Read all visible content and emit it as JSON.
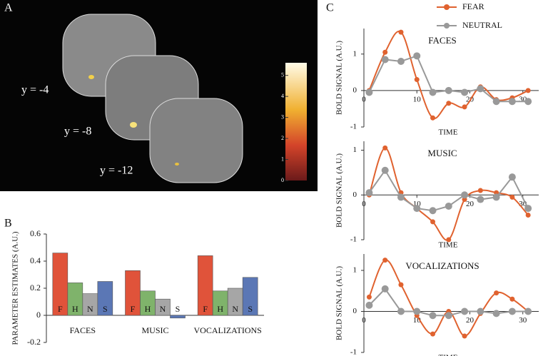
{
  "panel_labels": [
    "A",
    "B",
    "C"
  ],
  "panel_a": {
    "slice_labels": [
      "y = -4",
      "y = -8",
      "y = -12"
    ],
    "colorbar_ticks": [
      0,
      1,
      2,
      3,
      4,
      5
    ],
    "colorbar_lim": [
      0,
      5.6
    ]
  },
  "chart_data": [
    {
      "type": "bar",
      "y_label": "PARAMETER ESTIMATES (A.U.)",
      "categories": [
        "FACES",
        "MUSIC",
        "VOCALIZATIONS"
      ],
      "series": [
        {
          "name": "F",
          "color": "#e0533a",
          "values": [
            0.46,
            0.33,
            0.44
          ]
        },
        {
          "name": "H",
          "color": "#7fb36b",
          "values": [
            0.24,
            0.18,
            0.18
          ]
        },
        {
          "name": "N",
          "color": "#a6a6a6",
          "values": [
            0.16,
            0.12,
            0.2
          ]
        },
        {
          "name": "S",
          "color": "#5b77b5",
          "values": [
            0.25,
            -0.02,
            0.28
          ]
        }
      ],
      "ylim": [
        -0.2,
        0.6
      ],
      "yticks": [
        -0.2,
        0,
        0.2,
        0.4,
        0.6
      ]
    },
    {
      "type": "line",
      "title": "FACES",
      "x_label": "TIME",
      "y_label": "BOLD SIGNAL (A.U.)",
      "x": [
        1,
        4,
        7,
        10,
        13,
        16,
        19,
        22,
        25,
        28,
        31
      ],
      "series": [
        {
          "name": "FEAR",
          "color": "#e0622f",
          "smooth": true,
          "values": [
            0,
            1.05,
            1.6,
            0.3,
            -0.75,
            -0.35,
            -0.45,
            0.1,
            -0.25,
            -0.2,
            0
          ]
        },
        {
          "name": "NEUTRAL",
          "color": "#999999",
          "smooth": false,
          "values": [
            -0.05,
            0.85,
            0.8,
            0.95,
            -0.05,
            0,
            -0.05,
            0.05,
            -0.3,
            -0.3,
            -0.3
          ]
        }
      ],
      "xlim": [
        0,
        33
      ],
      "xticks": [
        0,
        10,
        20,
        30
      ],
      "ylim": [
        -1,
        1.7
      ],
      "yticks": [
        -1,
        0,
        1
      ]
    },
    {
      "type": "line",
      "title": "MUSIC",
      "x_label": "TIME",
      "y_label": "BOLD SIGNAL (A.U.)",
      "x": [
        1,
        4,
        7,
        10,
        13,
        16,
        19,
        22,
        25,
        28,
        31
      ],
      "series": [
        {
          "color": "#e0622f",
          "smooth": true,
          "values": [
            0,
            1.05,
            0.05,
            -0.3,
            -0.6,
            -1.0,
            -0.1,
            0.1,
            0.05,
            -0.05,
            -0.45
          ]
        },
        {
          "color": "#999999",
          "smooth": false,
          "values": [
            0.05,
            0.55,
            -0.05,
            -0.3,
            -0.35,
            -0.25,
            0,
            -0.1,
            -0.05,
            0.4,
            -0.3
          ]
        }
      ],
      "xlim": [
        0,
        33
      ],
      "xticks": [
        0,
        10,
        20,
        30
      ],
      "ylim": [
        -1,
        1.2
      ],
      "yticks": [
        -1,
        0,
        1
      ]
    },
    {
      "type": "line",
      "title": "VOCALIZATIONS",
      "x_label": "TIME",
      "y_label": "BOLD SIGNAL (A.U.)",
      "x": [
        1,
        4,
        7,
        10,
        13,
        16,
        19,
        22,
        25,
        28,
        31
      ],
      "series": [
        {
          "color": "#e0622f",
          "smooth": true,
          "values": [
            0.35,
            1.25,
            0.65,
            -0.1,
            -0.55,
            0,
            -0.6,
            -0.05,
            0.45,
            0.3,
            0
          ]
        },
        {
          "color": "#999999",
          "smooth": false,
          "values": [
            0.15,
            0.55,
            0,
            0,
            -0.1,
            -0.1,
            0,
            0,
            -0.05,
            0,
            0
          ]
        }
      ],
      "xlim": [
        0,
        33
      ],
      "xticks": [
        0,
        10,
        20,
        30
      ],
      "ylim": [
        -1,
        1.4
      ],
      "yticks": [
        -1,
        0,
        1
      ]
    }
  ]
}
